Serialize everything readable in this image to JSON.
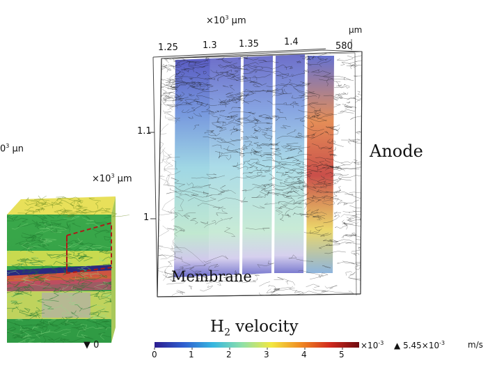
{
  "figure": {
    "top_axis_multiplier": "×10",
    "top_axis_multiplier_exp": "3",
    "top_axis_multiplier_unit": "μm",
    "top_axis_unit": "μm",
    "top_ticks": [
      "1.25",
      "1.3",
      "1.35",
      "1.4",
      "580"
    ],
    "vertical_ticks": [
      "1.1",
      "1"
    ],
    "left_axis_fragment": "0",
    "left_axis_fragment_exp": "3",
    "left_axis_fragment_unit": "μn",
    "small_axis_multiplier": "×10",
    "small_axis_multiplier_exp": "3",
    "small_axis_multiplier_unit": "μm",
    "anode_label": "Anode",
    "membrane_label": "Membrane",
    "min_marker_symbol": "▼",
    "min_marker_value": "0"
  },
  "colorbar": {
    "title": "H",
    "title_sub": "2",
    "title_rest": " velocity",
    "ticks": [
      "0",
      "1",
      "2",
      "3",
      "4",
      "5"
    ],
    "multiplier": "×10",
    "multiplier_exp": "-3",
    "max_marker_symbol": "▲",
    "max_value": "5.45×10",
    "max_value_exp": "-3",
    "unit": "m/s",
    "colors": [
      "#2b1c8f",
      "#2f5fd0",
      "#36b7e0",
      "#8fe0a8",
      "#f2e840",
      "#f08a22",
      "#d12a1e",
      "#6e0b10"
    ]
  }
}
